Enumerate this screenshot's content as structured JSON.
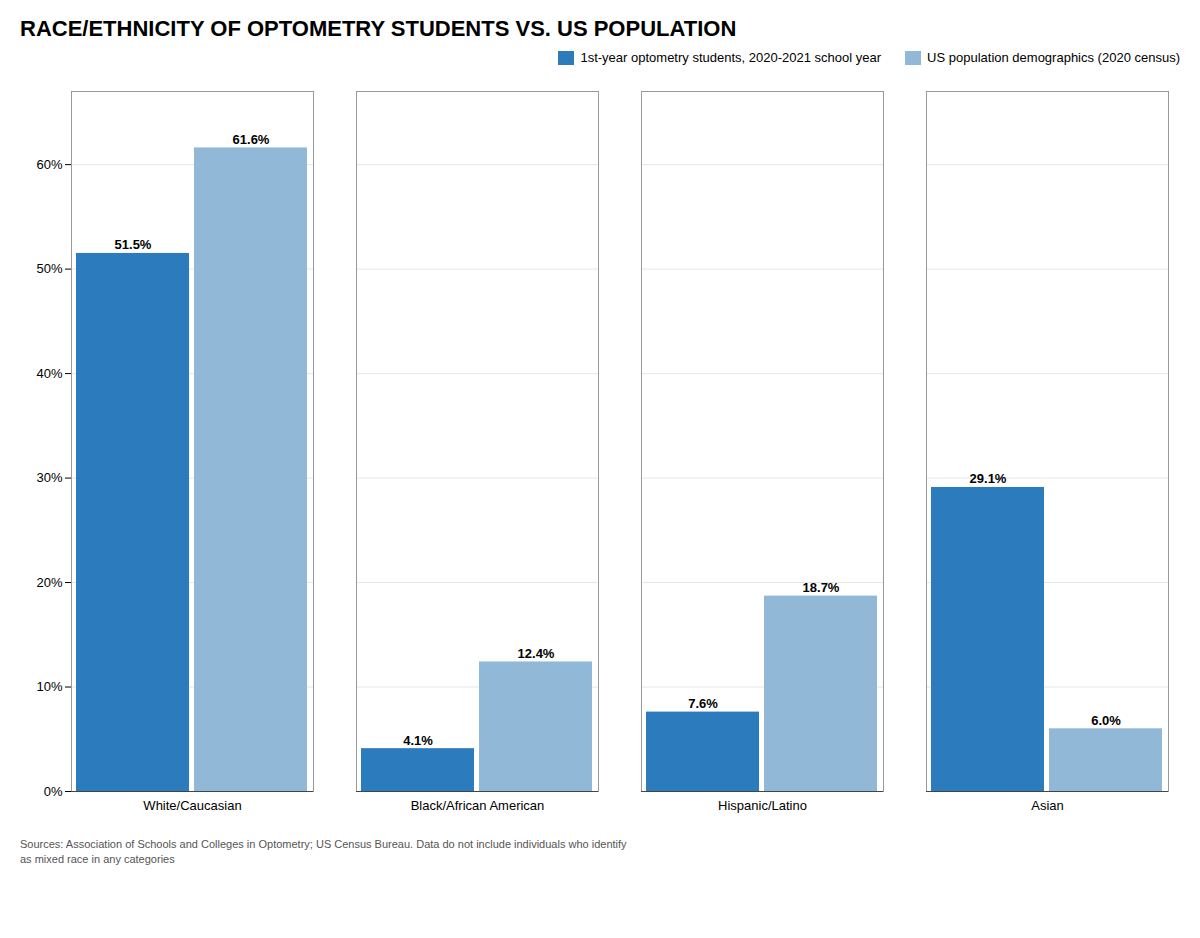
{
  "chart_data": {
    "type": "bar",
    "title": "RACE/ETHNICITY OF OPTOMETRY STUDENTS VS. US POPULATION",
    "categories": [
      "White/Caucasian",
      "Black/African American",
      "Hispanic/Latino",
      "Asian"
    ],
    "series": [
      {
        "name": "1st-year optometry students, 2020-2021 school year",
        "color": "#2B7BBD",
        "values": [
          51.5,
          4.1,
          7.6,
          29.1
        ],
        "value_labels": [
          "51.5%",
          "4.1%",
          "7.6%",
          "29.1%"
        ]
      },
      {
        "name": "US population demographics (2020 census)",
        "color": "#92B8D8",
        "values": [
          61.6,
          12.4,
          18.7,
          6.0
        ],
        "value_labels": [
          "61.6%",
          "12.4%",
          "18.7%",
          "6.0%"
        ]
      }
    ],
    "ylim": [
      0,
      67
    ],
    "yticks": [
      {
        "value": 0,
        "label": "0%"
      },
      {
        "value": 10,
        "label": "10%"
      },
      {
        "value": 20,
        "label": "20%"
      },
      {
        "value": 30,
        "label": "30%"
      },
      {
        "value": 40,
        "label": "40%"
      },
      {
        "value": 50,
        "label": "50%"
      },
      {
        "value": 60,
        "label": "60%"
      }
    ],
    "grid": true,
    "legend": "upper right",
    "data_labels": true,
    "caption": "Sources: Association of Schools and Colleges in Optometry; US Census Bureau. Data do not include individuals who identify\nas mixed race in any categories"
  }
}
